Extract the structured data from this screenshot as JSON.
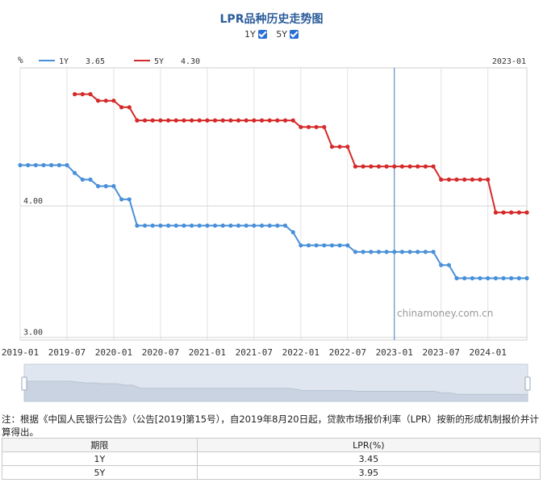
{
  "title": "LPR品种历史走势图",
  "toggles": [
    {
      "label": "1Y",
      "checked": true
    },
    {
      "label": "5Y",
      "checked": true
    }
  ],
  "chart_data": {
    "type": "line",
    "unit_label": "%",
    "legend": [
      {
        "name": "1Y",
        "value": "3.65",
        "color": "#4a90d9"
      },
      {
        "name": "5Y",
        "value": "4.30",
        "color": "#d42a2a"
      }
    ],
    "cursor_label": "2023-01",
    "cursor_date": "2023-01",
    "y_ticks": [
      "4.00",
      "3.00"
    ],
    "ylim": [
      2.98,
      5.05
    ],
    "x_range": [
      "2019-01",
      "2024-06"
    ],
    "x_ticks": [
      "2019-01",
      "2019-07",
      "2020-01",
      "2020-07",
      "2021-01",
      "2021-07",
      "2022-01",
      "2022-07",
      "2023-01",
      "2023-07",
      "2024-01"
    ],
    "watermark": "chinamoney.com.cn",
    "series": [
      {
        "name": "1Y",
        "color": "#4a90d9",
        "dates": [
          "2019-01",
          "2019-02",
          "2019-03",
          "2019-04",
          "2019-05",
          "2019-06",
          "2019-07",
          "2019-08",
          "2019-09",
          "2019-10",
          "2019-11",
          "2019-12",
          "2020-01",
          "2020-02",
          "2020-03",
          "2020-04",
          "2020-05",
          "2020-06",
          "2020-07",
          "2020-08",
          "2020-09",
          "2020-10",
          "2020-11",
          "2020-12",
          "2021-01",
          "2021-02",
          "2021-03",
          "2021-04",
          "2021-05",
          "2021-06",
          "2021-07",
          "2021-08",
          "2021-09",
          "2021-10",
          "2021-11",
          "2021-12",
          "2022-01",
          "2022-02",
          "2022-03",
          "2022-04",
          "2022-05",
          "2022-06",
          "2022-07",
          "2022-08",
          "2022-09",
          "2022-10",
          "2022-11",
          "2022-12",
          "2023-01",
          "2023-02",
          "2023-03",
          "2023-04",
          "2023-05",
          "2023-06",
          "2023-07",
          "2023-08",
          "2023-09",
          "2023-10",
          "2023-11",
          "2023-12",
          "2024-01",
          "2024-02",
          "2024-03",
          "2024-04",
          "2024-05",
          "2024-06"
        ],
        "values": [
          4.31,
          4.31,
          4.31,
          4.31,
          4.31,
          4.31,
          4.31,
          4.25,
          4.2,
          4.2,
          4.15,
          4.15,
          4.15,
          4.05,
          4.05,
          3.85,
          3.85,
          3.85,
          3.85,
          3.85,
          3.85,
          3.85,
          3.85,
          3.85,
          3.85,
          3.85,
          3.85,
          3.85,
          3.85,
          3.85,
          3.85,
          3.85,
          3.85,
          3.85,
          3.85,
          3.8,
          3.7,
          3.7,
          3.7,
          3.7,
          3.7,
          3.7,
          3.7,
          3.65,
          3.65,
          3.65,
          3.65,
          3.65,
          3.65,
          3.65,
          3.65,
          3.65,
          3.65,
          3.65,
          3.55,
          3.55,
          3.45,
          3.45,
          3.45,
          3.45,
          3.45,
          3.45,
          3.45,
          3.45,
          3.45,
          3.45
        ]
      },
      {
        "name": "5Y",
        "color": "#d42a2a",
        "dates": [
          "2019-08",
          "2019-09",
          "2019-10",
          "2019-11",
          "2019-12",
          "2020-01",
          "2020-02",
          "2020-03",
          "2020-04",
          "2020-05",
          "2020-06",
          "2020-07",
          "2020-08",
          "2020-09",
          "2020-10",
          "2020-11",
          "2020-12",
          "2021-01",
          "2021-02",
          "2021-03",
          "2021-04",
          "2021-05",
          "2021-06",
          "2021-07",
          "2021-08",
          "2021-09",
          "2021-10",
          "2021-11",
          "2021-12",
          "2022-01",
          "2022-02",
          "2022-03",
          "2022-04",
          "2022-05",
          "2022-06",
          "2022-07",
          "2022-08",
          "2022-09",
          "2022-10",
          "2022-11",
          "2022-12",
          "2023-01",
          "2023-02",
          "2023-03",
          "2023-04",
          "2023-05",
          "2023-06",
          "2023-07",
          "2023-08",
          "2023-09",
          "2023-10",
          "2023-11",
          "2023-12",
          "2024-01",
          "2024-02",
          "2024-03",
          "2024-04",
          "2024-05",
          "2024-06"
        ],
        "values": [
          4.85,
          4.85,
          4.85,
          4.8,
          4.8,
          4.8,
          4.75,
          4.75,
          4.65,
          4.65,
          4.65,
          4.65,
          4.65,
          4.65,
          4.65,
          4.65,
          4.65,
          4.65,
          4.65,
          4.65,
          4.65,
          4.65,
          4.65,
          4.65,
          4.65,
          4.65,
          4.65,
          4.65,
          4.65,
          4.6,
          4.6,
          4.6,
          4.6,
          4.45,
          4.45,
          4.45,
          4.3,
          4.3,
          4.3,
          4.3,
          4.3,
          4.3,
          4.3,
          4.3,
          4.3,
          4.3,
          4.3,
          4.2,
          4.2,
          4.2,
          4.2,
          4.2,
          4.2,
          4.2,
          3.95,
          3.95,
          3.95,
          3.95,
          3.95
        ]
      }
    ]
  },
  "note": "注：根据《中国人民银行公告》（公告[2019]第15号），自2019年8月20日起，贷款市场报价利率（LPR）按新的形成机制报价并计算得出。",
  "table": {
    "headers": [
      "期限",
      "LPR(%)"
    ],
    "rows": [
      {
        "term": "1Y",
        "rate": "3.45"
      },
      {
        "term": "5Y",
        "rate": "3.95"
      }
    ]
  }
}
